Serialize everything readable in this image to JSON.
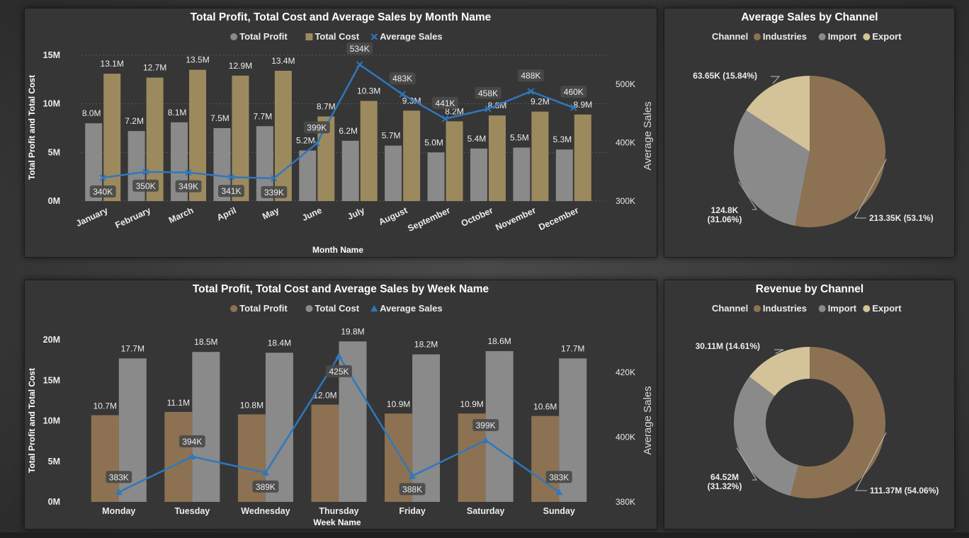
{
  "colors": {
    "panel_bg": "#363636",
    "gray": "#8a8a8a",
    "brown": "#8c7252",
    "tan": "#9c8a5e",
    "light_tan": "#d4c399",
    "line_blue": "#2e78be",
    "label_bg": "#4a4a4a",
    "text": "#ececec"
  },
  "chart_data": [
    {
      "type": "bar",
      "combo": "clustered bar + line (secondary axis)",
      "title": "Total Profit, Total Cost and Average Sales by Month Name",
      "xlabel": "Month Name",
      "ylabel": "Total Profit and Total Cost",
      "y2label": "Average Sales",
      "categories": [
        "January",
        "February",
        "March",
        "April",
        "May",
        "June",
        "July",
        "August",
        "September",
        "October",
        "November",
        "December"
      ],
      "ylim": [
        0,
        15000000
      ],
      "y_ticks": [
        "0M",
        "5M",
        "10M",
        "15M"
      ],
      "y2lim": [
        300000,
        550000
      ],
      "y2_ticks": [
        "300K",
        "400K",
        "500K"
      ],
      "legend": [
        {
          "name": "Total Profit",
          "marker": "circle",
          "color": "#8a8a8a"
        },
        {
          "name": "Total Cost",
          "marker": "square",
          "color": "#9c8a5e"
        },
        {
          "name": "Average Sales",
          "marker": "x",
          "color": "#2e78be"
        }
      ],
      "series": [
        {
          "name": "Total Profit",
          "values": [
            8000000,
            7200000,
            8100000,
            7500000,
            7700000,
            5200000,
            6200000,
            5700000,
            5000000,
            5400000,
            5500000,
            5300000
          ],
          "labels": [
            "8.0M",
            "7.2M",
            "8.1M",
            "7.5M",
            "7.7M",
            "5.2M",
            "6.2M",
            "5.7M",
            "5.0M",
            "5.4M",
            "5.5M",
            "5.3M"
          ]
        },
        {
          "name": "Total Cost",
          "values": [
            13100000,
            12700000,
            13500000,
            12900000,
            13400000,
            8700000,
            10300000,
            9300000,
            8200000,
            8800000,
            9200000,
            8900000
          ],
          "labels": [
            "13.1M",
            "12.7M",
            "13.5M",
            "12.9M",
            "13.4M",
            "8.7M",
            "10.3M",
            "9.3M",
            "8.2M",
            "8.8M",
            "9.2M",
            "8.9M"
          ]
        },
        {
          "name": "Average Sales",
          "axis": "secondary",
          "values": [
            340000,
            350000,
            349000,
            341000,
            339000,
            399000,
            534000,
            483000,
            441000,
            458000,
            488000,
            460000
          ],
          "labels": [
            "340K",
            "350K",
            "349K",
            "341K",
            "339K",
            "399K",
            "534K",
            "483K",
            "441K",
            "458K",
            "488K",
            "460K"
          ]
        }
      ]
    },
    {
      "type": "pie",
      "title": "Average Sales by Channel",
      "legend_title": "Channel",
      "legend": [
        "Industries",
        "Import",
        "Export"
      ],
      "slices": [
        {
          "name": "Industries",
          "value": 213350,
          "label": "213.35K (53.1%)",
          "color": "#8c7252"
        },
        {
          "name": "Import",
          "value": 124800,
          "label": "124.8K (31.06%)",
          "color": "#8a8a8a"
        },
        {
          "name": "Export",
          "value": 63650,
          "label": "63.65K (15.84%)",
          "color": "#d4c399"
        }
      ]
    },
    {
      "type": "bar",
      "combo": "clustered bar + line (secondary axis)",
      "title": "Total Profit, Total Cost and Average Sales by Week Name",
      "xlabel": "Week Name",
      "ylabel": "Total Profit and Total Cost",
      "y2label": "Average Sales",
      "categories": [
        "Monday",
        "Tuesday",
        "Wednesday",
        "Thursday",
        "Friday",
        "Saturday",
        "Sunday"
      ],
      "ylim": [
        0,
        20000000
      ],
      "y_ticks": [
        "0M",
        "5M",
        "10M",
        "15M",
        "20M"
      ],
      "y2lim": [
        380000,
        430000
      ],
      "y2_ticks": [
        "380K",
        "400K",
        "420K"
      ],
      "legend": [
        {
          "name": "Total Profit",
          "marker": "circle",
          "color": "#8c7252"
        },
        {
          "name": "Total Cost",
          "marker": "circle",
          "color": "#8a8a8a"
        },
        {
          "name": "Average Sales",
          "marker": "triangle",
          "color": "#2e78be"
        }
      ],
      "series": [
        {
          "name": "Total Profit",
          "values": [
            10700000,
            11100000,
            10800000,
            12000000,
            10900000,
            10900000,
            10600000
          ],
          "labels": [
            "10.7M",
            "11.1M",
            "10.8M",
            "12.0M",
            "10.9M",
            "10.9M",
            "10.6M"
          ]
        },
        {
          "name": "Total Cost",
          "values": [
            17700000,
            18500000,
            18400000,
            19800000,
            18200000,
            18600000,
            17700000
          ],
          "labels": [
            "17.7M",
            "18.5M",
            "18.4M",
            "19.8M",
            "18.2M",
            "18.6M",
            "17.7M"
          ]
        },
        {
          "name": "Average Sales",
          "axis": "secondary",
          "values": [
            383000,
            394000,
            389000,
            425000,
            388000,
            399000,
            383000
          ],
          "labels": [
            "383K",
            "394K",
            "389K",
            "425K",
            "388K",
            "399K",
            "383K"
          ]
        }
      ]
    },
    {
      "type": "pie",
      "variant": "donut",
      "title": "Revenue by Channel",
      "legend_title": "Channel",
      "legend": [
        "Industries",
        "Import",
        "Export"
      ],
      "slices": [
        {
          "name": "Industries",
          "value": 111370000,
          "label": "111.37M (54.06%)",
          "color": "#8c7252"
        },
        {
          "name": "Import",
          "value": 64520000,
          "label": "64.52M (31.32%)",
          "color": "#8a8a8a"
        },
        {
          "name": "Export",
          "value": 30110000,
          "label": "30.11M (14.61%)",
          "color": "#d4c399"
        }
      ]
    }
  ]
}
